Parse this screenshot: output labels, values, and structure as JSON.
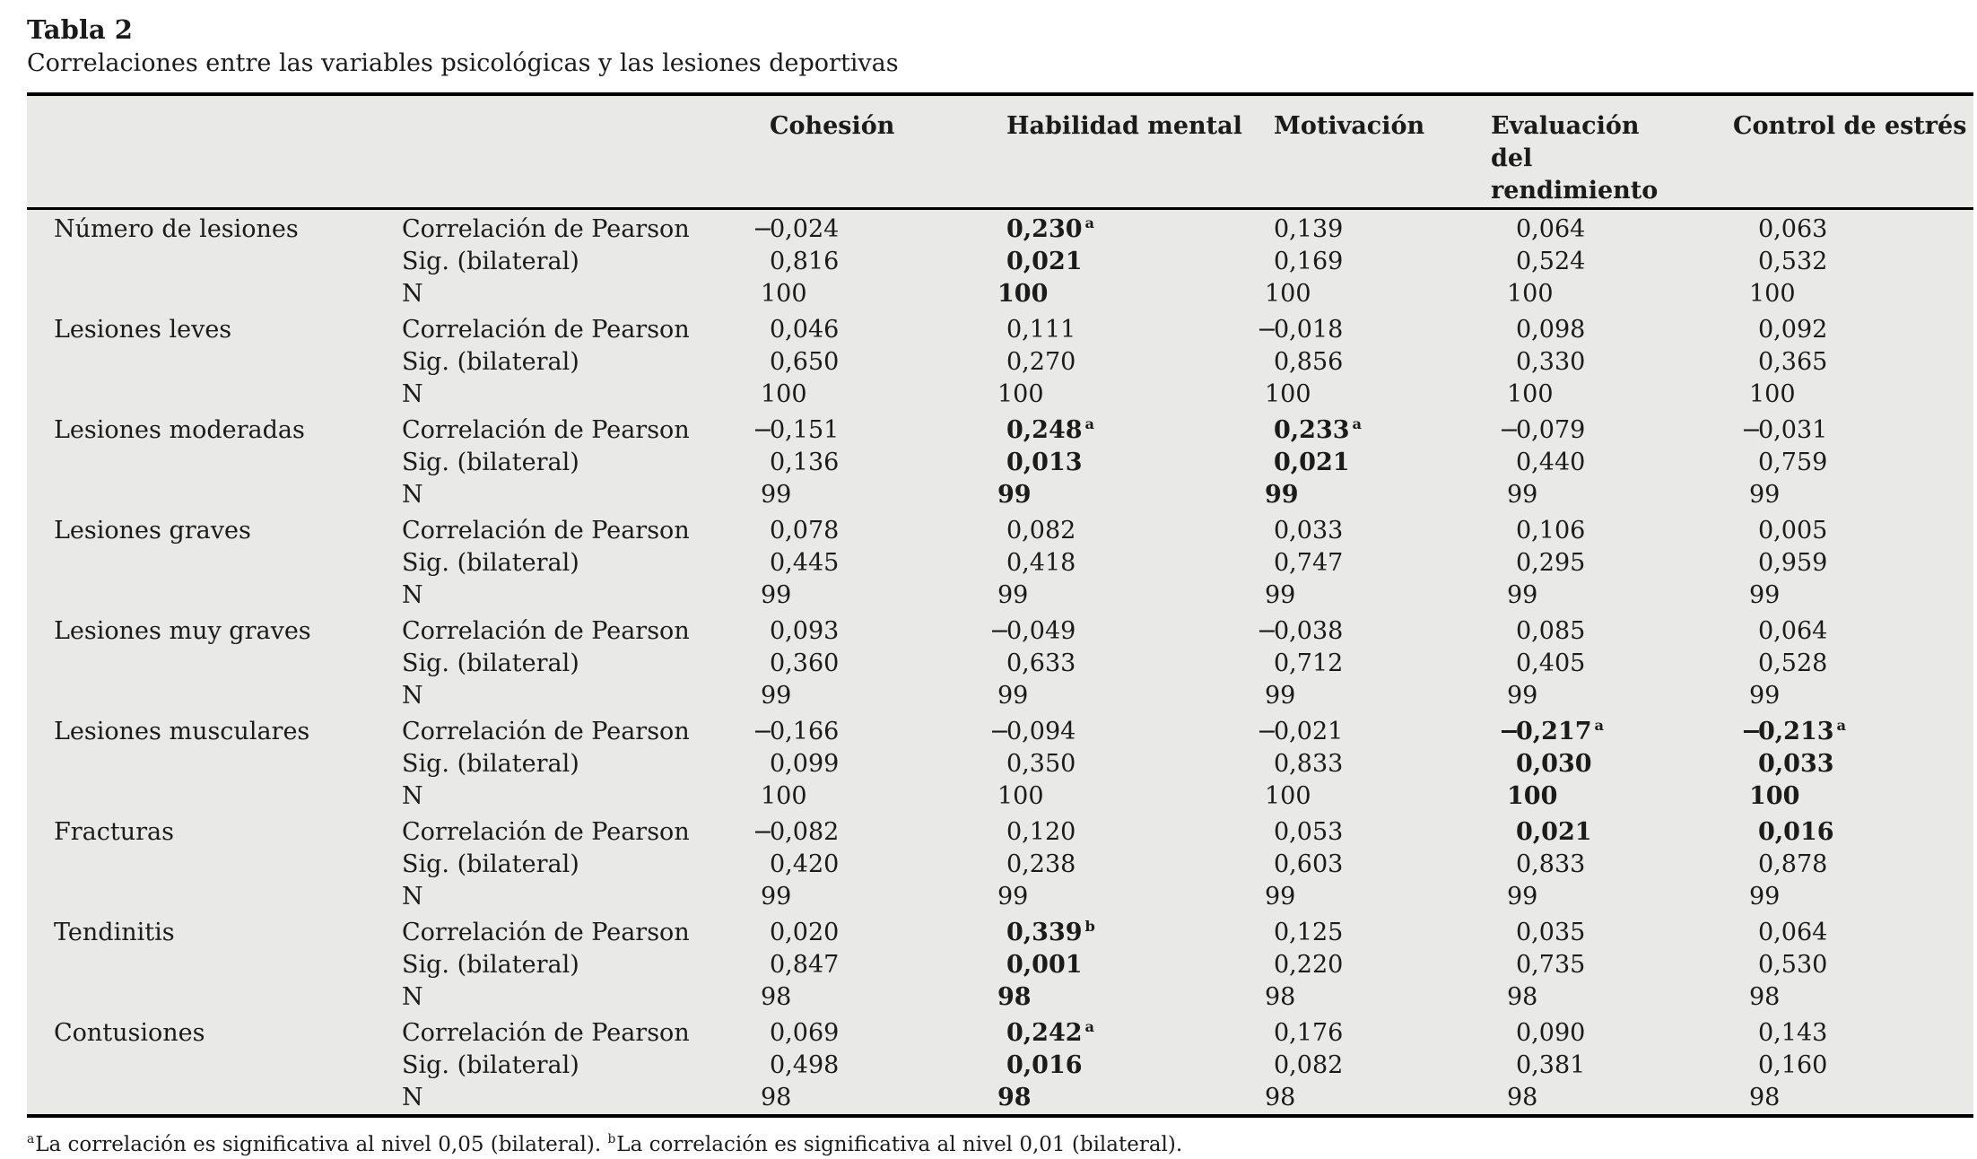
{
  "page": {
    "title": "Tabla 2",
    "subtitle": "Correlaciones entre las variables psicológicas y las lesiones deportivas"
  },
  "colors": {
    "table_background": "#e9e9e7",
    "text": "#1b1b1b",
    "rule": "#000000"
  },
  "table": {
    "headers": [
      "Cohesión",
      "Habilidad mental",
      "Motivación",
      "Evaluación del rendimiento",
      "Control de estrés"
    ],
    "stat_labels": [
      "Correlación de Pearson",
      "Sig. (bilateral)",
      "N"
    ],
    "groups": [
      {
        "label": "Número de lesiones",
        "pearson": [
          {
            "v": "−0,024"
          },
          {
            "v": "0,230",
            "sup": "a",
            "b": true
          },
          {
            "v": "0,139"
          },
          {
            "v": "0,064"
          },
          {
            "v": "0,063"
          }
        ],
        "sig": [
          {
            "v": "0,816"
          },
          {
            "v": "0,021",
            "b": true
          },
          {
            "v": "0,169"
          },
          {
            "v": "0,524"
          },
          {
            "v": "0,532"
          }
        ],
        "n": [
          {
            "v": "100"
          },
          {
            "v": "100",
            "b": true
          },
          {
            "v": "100"
          },
          {
            "v": "100"
          },
          {
            "v": "100"
          }
        ]
      },
      {
        "label": "Lesiones leves",
        "pearson": [
          {
            "v": "0,046"
          },
          {
            "v": "0,111"
          },
          {
            "v": "−0,018"
          },
          {
            "v": "0,098"
          },
          {
            "v": "0,092"
          }
        ],
        "sig": [
          {
            "v": "0,650"
          },
          {
            "v": "0,270"
          },
          {
            "v": "0,856"
          },
          {
            "v": "0,330"
          },
          {
            "v": "0,365"
          }
        ],
        "n": [
          {
            "v": "100"
          },
          {
            "v": "100"
          },
          {
            "v": "100"
          },
          {
            "v": "100"
          },
          {
            "v": "100"
          }
        ]
      },
      {
        "label": "Lesiones moderadas",
        "pearson": [
          {
            "v": "−0,151"
          },
          {
            "v": "0,248",
            "sup": "a",
            "b": true
          },
          {
            "v": "0,233",
            "sup": "a",
            "b": true
          },
          {
            "v": "−0,079"
          },
          {
            "v": "−0,031"
          }
        ],
        "sig": [
          {
            "v": "0,136"
          },
          {
            "v": "0,013",
            "b": true
          },
          {
            "v": "0,021",
            "b": true
          },
          {
            "v": "0,440"
          },
          {
            "v": "0,759"
          }
        ],
        "n": [
          {
            "v": "99"
          },
          {
            "v": "99",
            "b": true
          },
          {
            "v": "99",
            "b": true
          },
          {
            "v": "99"
          },
          {
            "v": "99"
          }
        ]
      },
      {
        "label": "Lesiones graves",
        "pearson": [
          {
            "v": "0,078"
          },
          {
            "v": "0,082"
          },
          {
            "v": "0,033"
          },
          {
            "v": "0,106"
          },
          {
            "v": "0,005"
          }
        ],
        "sig": [
          {
            "v": "0,445"
          },
          {
            "v": "0,418"
          },
          {
            "v": "0,747"
          },
          {
            "v": "0,295"
          },
          {
            "v": "0,959"
          }
        ],
        "n": [
          {
            "v": "99"
          },
          {
            "v": "99"
          },
          {
            "v": "99"
          },
          {
            "v": "99"
          },
          {
            "v": "99"
          }
        ]
      },
      {
        "label": "Lesiones muy graves",
        "pearson": [
          {
            "v": "0,093"
          },
          {
            "v": "−0,049"
          },
          {
            "v": "−0,038"
          },
          {
            "v": "0,085"
          },
          {
            "v": "0,064"
          }
        ],
        "sig": [
          {
            "v": "0,360"
          },
          {
            "v": "0,633"
          },
          {
            "v": "0,712"
          },
          {
            "v": "0,405"
          },
          {
            "v": "0,528"
          }
        ],
        "n": [
          {
            "v": "99"
          },
          {
            "v": "99"
          },
          {
            "v": "99"
          },
          {
            "v": "99"
          },
          {
            "v": "99"
          }
        ]
      },
      {
        "label": "Lesiones musculares",
        "pearson": [
          {
            "v": "−0,166"
          },
          {
            "v": "−0,094"
          },
          {
            "v": "−0,021"
          },
          {
            "v": "−0,217",
            "sup": "a",
            "b": true
          },
          {
            "v": "−0,213",
            "sup": "a",
            "b": true
          }
        ],
        "sig": [
          {
            "v": "0,099"
          },
          {
            "v": "0,350"
          },
          {
            "v": "0,833"
          },
          {
            "v": "0,030",
            "b": true
          },
          {
            "v": "0,033",
            "b": true
          }
        ],
        "n": [
          {
            "v": "100"
          },
          {
            "v": "100"
          },
          {
            "v": "100"
          },
          {
            "v": "100",
            "b": true
          },
          {
            "v": "100",
            "b": true
          }
        ]
      },
      {
        "label": "Fracturas",
        "pearson": [
          {
            "v": "−0,082"
          },
          {
            "v": "0,120"
          },
          {
            "v": "0,053"
          },
          {
            "v": "0,021",
            "b": true
          },
          {
            "v": "0,016",
            "b": true
          }
        ],
        "sig": [
          {
            "v": "0,420"
          },
          {
            "v": "0,238"
          },
          {
            "v": "0,603"
          },
          {
            "v": "0,833"
          },
          {
            "v": "0,878"
          }
        ],
        "n": [
          {
            "v": "99"
          },
          {
            "v": "99"
          },
          {
            "v": "99"
          },
          {
            "v": "99"
          },
          {
            "v": "99"
          }
        ]
      },
      {
        "label": "Tendinitis",
        "pearson": [
          {
            "v": "0,020"
          },
          {
            "v": "0,339",
            "sup": "b",
            "b": true
          },
          {
            "v": "0,125"
          },
          {
            "v": "0,035"
          },
          {
            "v": "0,064"
          }
        ],
        "sig": [
          {
            "v": "0,847"
          },
          {
            "v": "0,001",
            "b": true
          },
          {
            "v": "0,220"
          },
          {
            "v": "0,735"
          },
          {
            "v": "0,530"
          }
        ],
        "n": [
          {
            "v": "98"
          },
          {
            "v": "98",
            "b": true
          },
          {
            "v": "98"
          },
          {
            "v": "98"
          },
          {
            "v": "98"
          }
        ]
      },
      {
        "label": "Contusiones",
        "pearson": [
          {
            "v": "0,069"
          },
          {
            "v": "0,242",
            "sup": "a",
            "b": true
          },
          {
            "v": "0,176"
          },
          {
            "v": "0,090"
          },
          {
            "v": "0,143"
          }
        ],
        "sig": [
          {
            "v": "0,498"
          },
          {
            "v": "0,016",
            "b": true
          },
          {
            "v": "0,082"
          },
          {
            "v": "0,381"
          },
          {
            "v": "0,160"
          }
        ],
        "n": [
          {
            "v": "98"
          },
          {
            "v": "98",
            "b": true
          },
          {
            "v": "98"
          },
          {
            "v": "98"
          },
          {
            "v": "98"
          }
        ]
      }
    ]
  },
  "footnotes": [
    {
      "marker": "a",
      "text": "La correlación es significativa al nivel 0,05 (bilateral). "
    },
    {
      "marker": "b",
      "text": "La correlación es significativa al nivel 0,01 (bilateral)."
    }
  ]
}
